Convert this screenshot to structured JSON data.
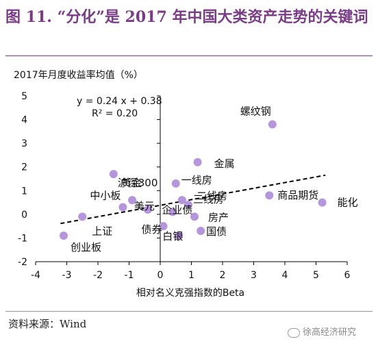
{
  "title": "图 11. “分化”是 2017 年中国大类资产走势的关键词",
  "footer": {
    "source": "资料来源：Wind"
  },
  "watermark": {
    "text": "徐高经济研究"
  },
  "chart_data": {
    "type": "scatter",
    "ylabel": "2017年月度收益率均值（%）",
    "xlabel": "相对名义克强指数的Beta",
    "xlim": [
      -4,
      6
    ],
    "ylim": [
      -2,
      5
    ],
    "xticks": [
      "-4",
      "-3",
      "-2",
      "-1",
      "0",
      "1",
      "2",
      "3",
      "4",
      "5",
      "6"
    ],
    "yticks": [
      "-2",
      "-1",
      "0",
      "1",
      "2",
      "3",
      "4",
      "5"
    ],
    "grid": false,
    "trendline": {
      "equation": "y = 0.24 x + 0.38",
      "r2": "R² = 0.20",
      "slope": 0.24,
      "intercept": 0.38,
      "x_range": [
        -3.2,
        5.3
      ]
    },
    "points": [
      {
        "label": "螺纹钢",
        "x": 3.6,
        "y": 3.8
      },
      {
        "label": "金属",
        "x": 1.2,
        "y": 2.2
      },
      {
        "label": "沪深300",
        "x": -1.5,
        "y": 1.7
      },
      {
        "label": "一线房",
        "x": 0.5,
        "y": 1.3
      },
      {
        "label": "商品期货",
        "x": 3.5,
        "y": 0.8
      },
      {
        "label": "能化",
        "x": 5.2,
        "y": 0.5
      },
      {
        "label": "黄金",
        "x": -0.9,
        "y": 0.6
      },
      {
        "label": "三线房",
        "x": 0.7,
        "y": 0.6
      },
      {
        "label": "二线房",
        "x": 0.9,
        "y": 0.4
      },
      {
        "label": "中小板",
        "x": -1.2,
        "y": 0.3
      },
      {
        "label": "房产",
        "x": 1.1,
        "y": -0.1
      },
      {
        "label": "美元",
        "x": -0.4,
        "y": 0.2
      },
      {
        "label": "企业债",
        "x": 0.4,
        "y": 0.1
      },
      {
        "label": "上证",
        "x": -2.5,
        "y": -0.1
      },
      {
        "label": "债券",
        "x": 0.1,
        "y": -0.5
      },
      {
        "label": "白银",
        "x": 0.6,
        "y": -0.9
      },
      {
        "label": "国债",
        "x": 1.3,
        "y": -0.7
      },
      {
        "label": "创业板",
        "x": -3.1,
        "y": -0.9
      }
    ],
    "colors": {
      "point": "#b596dd",
      "axis": "#000000",
      "trend": "#000000"
    }
  }
}
